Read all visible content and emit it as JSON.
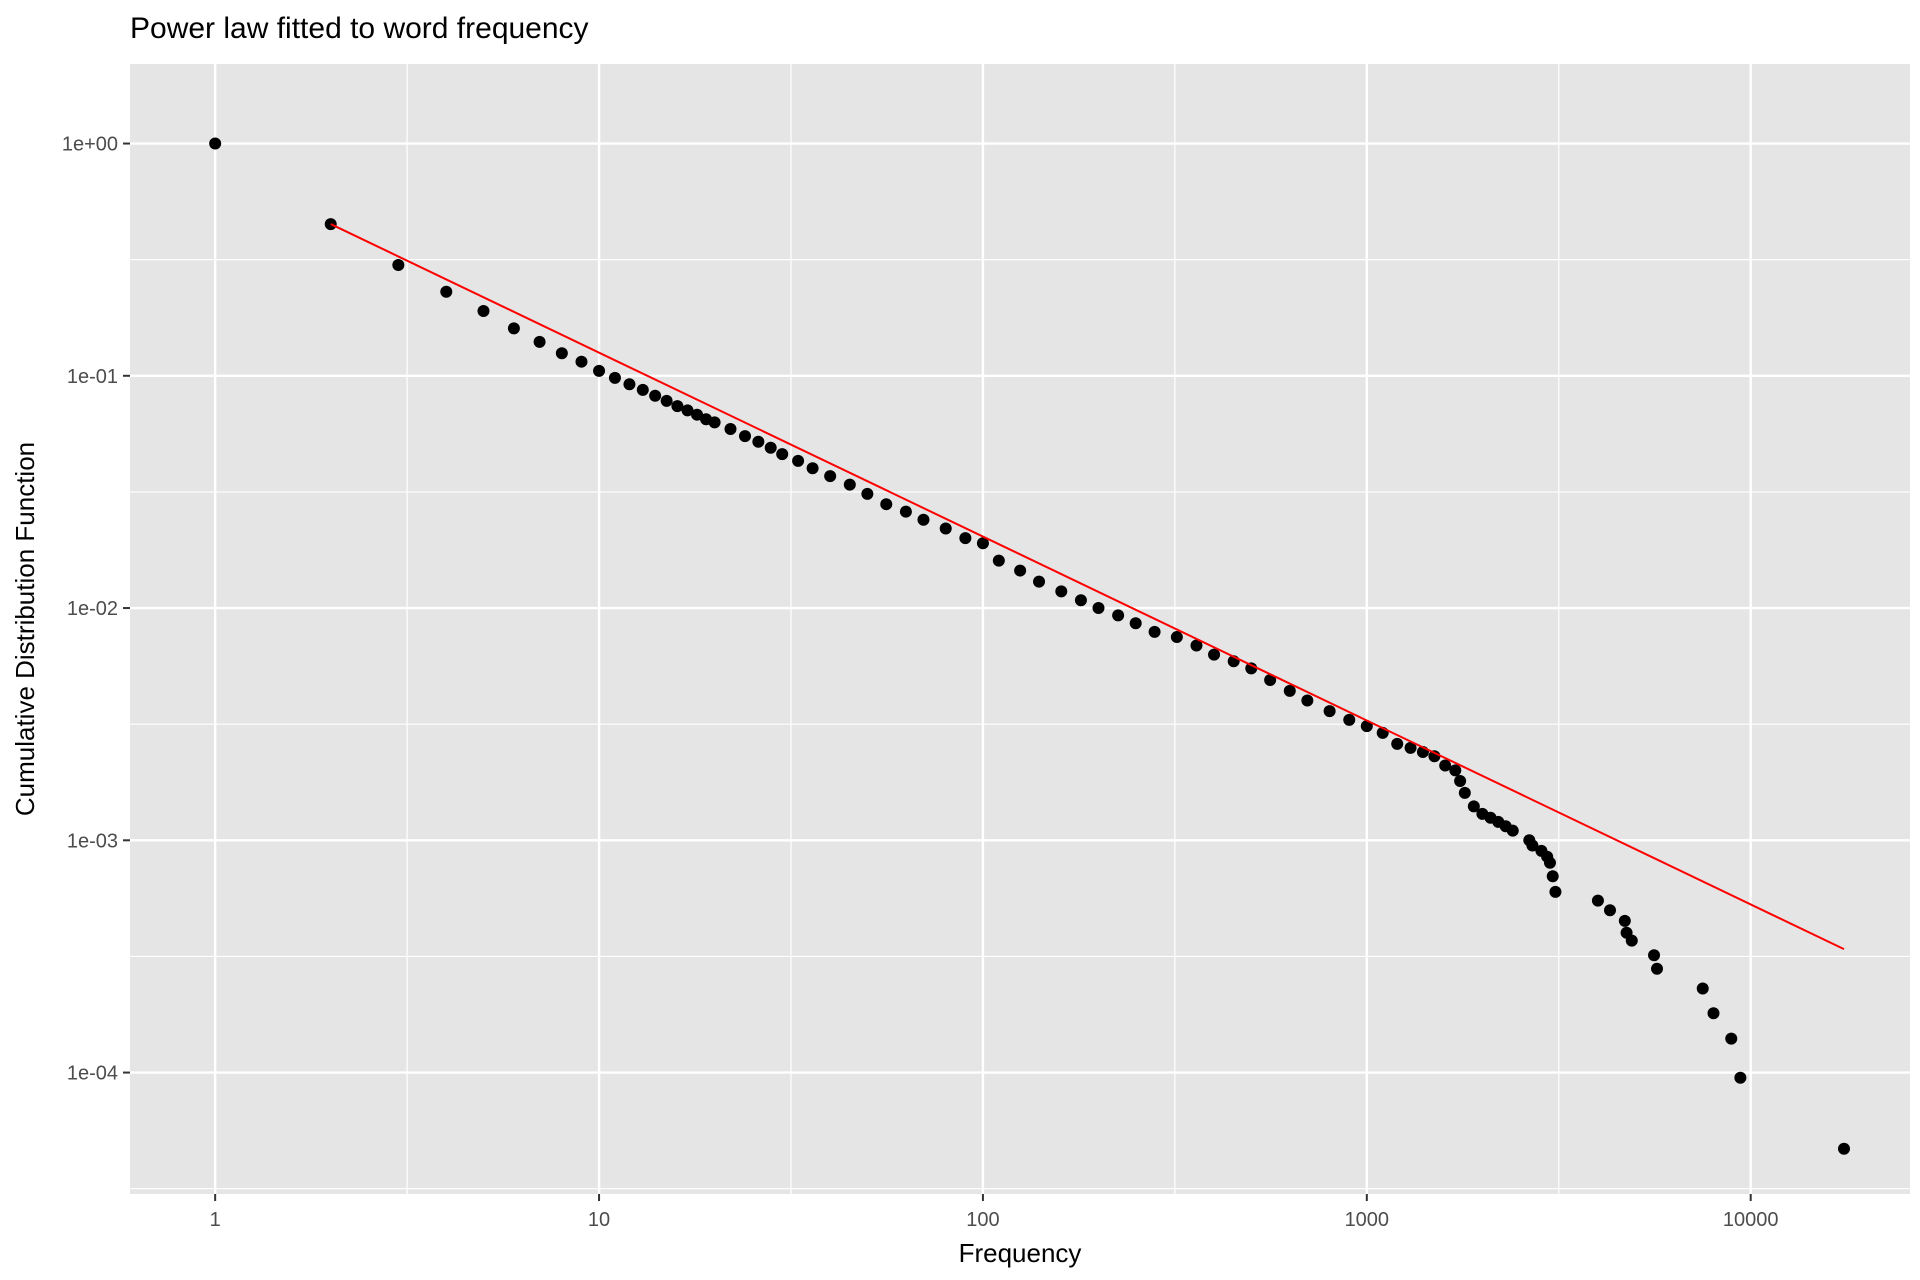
{
  "chart_data": {
    "type": "scatter",
    "title": "Power law fitted to word frequency",
    "xlabel": "Frequency",
    "ylabel": "Cumulative Distribution Function",
    "x_scale": "log10",
    "y_scale": "log10",
    "xlim": [
      0.6,
      26000
    ],
    "ylim": [
      3e-05,
      2.2
    ],
    "grid": true,
    "legend": "none",
    "x_ticks": [
      {
        "value": 1,
        "label": "1"
      },
      {
        "value": 10,
        "label": "10"
      },
      {
        "value": 100,
        "label": "100"
      },
      {
        "value": 1000,
        "label": "1000"
      },
      {
        "value": 10000,
        "label": "10000"
      }
    ],
    "y_ticks": [
      {
        "value": 1,
        "label": "1e+00"
      },
      {
        "value": 0.1,
        "label": "1e-01"
      },
      {
        "value": 0.01,
        "label": "1e-02"
      },
      {
        "value": 0.001,
        "label": "1e-03"
      },
      {
        "value": 0.0001,
        "label": "1e-04"
      }
    ],
    "colors": {
      "panel": "#e5e5e5",
      "grid": "#ffffff",
      "points": "#000000",
      "fit_line": "#ff0000"
    },
    "series": [
      {
        "name": "",
        "type": "scatter",
        "x": [
          1,
          2,
          3,
          4,
          5,
          6,
          7,
          8,
          9,
          10,
          11,
          12,
          13,
          14,
          15,
          16,
          17,
          18,
          19,
          20,
          22,
          24,
          26,
          28,
          30,
          33,
          36,
          40,
          45,
          50,
          56,
          63,
          70,
          80,
          90,
          100,
          110,
          125,
          140,
          160,
          180,
          200,
          225,
          250,
          280,
          320,
          360,
          400,
          450,
          500,
          560,
          630,
          700,
          800,
          900,
          1000,
          1100,
          1200,
          1300,
          1400,
          1500,
          1600,
          1700,
          1750,
          1800,
          1900,
          2000,
          2100,
          2200,
          2300,
          2400,
          2650,
          2700,
          2850,
          2950,
          3000,
          3050,
          3100,
          4000,
          4300,
          4700,
          4750,
          4900,
          5600,
          5700,
          7500,
          8000,
          8900,
          9400,
          17500
        ],
        "y": [
          1.0,
          0.45,
          0.3,
          0.23,
          0.19,
          0.16,
          0.14,
          0.125,
          0.115,
          0.105,
          0.098,
          0.092,
          0.087,
          0.082,
          0.078,
          0.074,
          0.071,
          0.068,
          0.065,
          0.063,
          0.059,
          0.055,
          0.052,
          0.049,
          0.046,
          0.043,
          0.04,
          0.037,
          0.034,
          0.031,
          0.028,
          0.026,
          0.024,
          0.022,
          0.02,
          0.019,
          0.016,
          0.0145,
          0.013,
          0.0118,
          0.0108,
          0.01,
          0.0093,
          0.0086,
          0.0079,
          0.0075,
          0.0069,
          0.0063,
          0.0059,
          0.0055,
          0.0049,
          0.0044,
          0.004,
          0.0036,
          0.0033,
          0.0031,
          0.0029,
          0.0026,
          0.0025,
          0.0024,
          0.0023,
          0.0021,
          0.002,
          0.0018,
          0.0016,
          0.0014,
          0.0013,
          0.00125,
          0.0012,
          0.00115,
          0.0011,
          0.001,
          0.00095,
          0.0009,
          0.00085,
          0.0008,
          0.0007,
          0.0006,
          0.00055,
          0.0005,
          0.00045,
          0.0004,
          0.00037,
          0.00032,
          0.00028,
          0.00023,
          0.00018,
          0.00014,
          9.5e-05,
          4.7e-05
        ]
      },
      {
        "name": "",
        "type": "line",
        "x": [
          2,
          17500
        ],
        "y": [
          0.45,
          0.00034
        ]
      }
    ]
  }
}
